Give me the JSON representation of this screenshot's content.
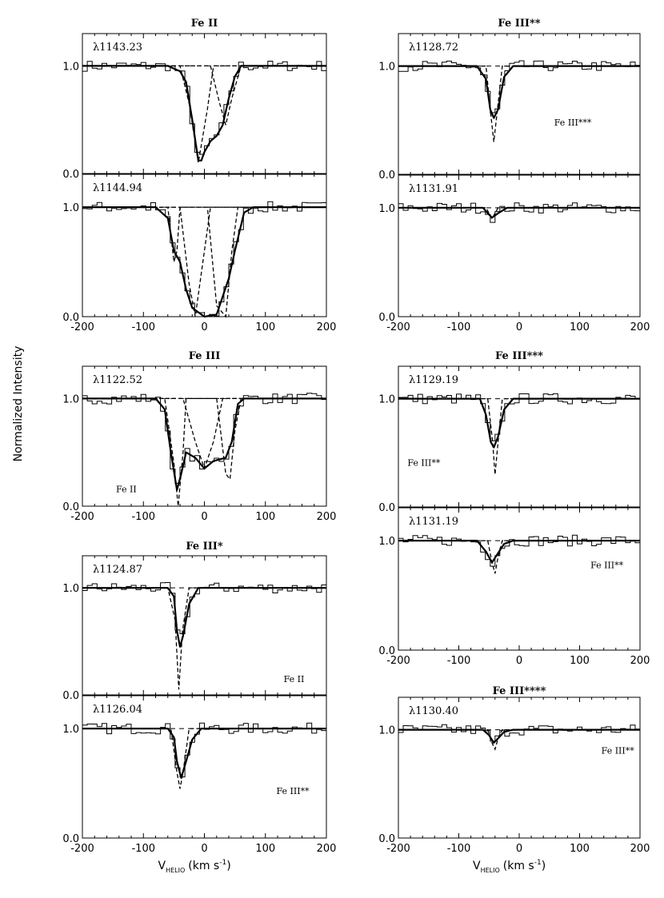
{
  "ylabel": "Normalized Intensity",
  "xlabel_parts": {
    "v": "V",
    "sub": "HELIO",
    "open": "(km s",
    "exp": "-1",
    "close": ")"
  },
  "chart_data": [
    {
      "type": "line",
      "title": "Fe II",
      "xlim": [
        -200,
        200
      ],
      "ylim": [
        0,
        1.3
      ],
      "x_ticks": [
        -200,
        -100,
        0,
        100,
        200
      ],
      "y_ticks": [
        "0.0",
        "1.0"
      ],
      "panels": [
        {
          "label": "λ1143.23",
          "fit_points": [
            [
              -200,
              1.0
            ],
            [
              -60,
              1.0
            ],
            [
              -40,
              0.95
            ],
            [
              -30,
              0.85
            ],
            [
              -20,
              0.5
            ],
            [
              -10,
              0.12
            ],
            [
              -5,
              0.12
            ],
            [
              0,
              0.2
            ],
            [
              10,
              0.3
            ],
            [
              20,
              0.35
            ],
            [
              30,
              0.45
            ],
            [
              40,
              0.7
            ],
            [
              50,
              0.9
            ],
            [
              60,
              1.0
            ],
            [
              200,
              1.0
            ]
          ],
          "component_points": [
            [
              [
                -200,
                1.0
              ],
              [
                -40,
                1.0
              ],
              [
                -25,
                0.65
              ],
              [
                -10,
                0.1
              ],
              [
                5,
                0.6
              ],
              [
                15,
                1.0
              ],
              [
                200,
                1.0
              ]
            ],
            [
              [
                -200,
                1.0
              ],
              [
                10,
                1.0
              ],
              [
                25,
                0.65
              ],
              [
                35,
                0.45
              ],
              [
                45,
                0.7
              ],
              [
                60,
                1.0
              ],
              [
                200,
                1.0
              ]
            ]
          ],
          "annotations": []
        },
        {
          "label": "λ1144.94",
          "fit_points": [
            [
              -200,
              1.0
            ],
            [
              -80,
              1.0
            ],
            [
              -60,
              0.9
            ],
            [
              -50,
              0.6
            ],
            [
              -40,
              0.5
            ],
            [
              -30,
              0.25
            ],
            [
              -20,
              0.08
            ],
            [
              0,
              0.0
            ],
            [
              20,
              0.02
            ],
            [
              40,
              0.35
            ],
            [
              50,
              0.6
            ],
            [
              65,
              0.95
            ],
            [
              80,
              1.0
            ],
            [
              200,
              1.0
            ]
          ],
          "component_points": [
            [
              [
                -200,
                1.0
              ],
              [
                -60,
                1.0
              ],
              [
                -50,
                0.5
              ],
              [
                -45,
                0.6
              ],
              [
                -40,
                1.0
              ],
              [
                200,
                1.0
              ]
            ],
            [
              [
                -200,
                1.0
              ],
              [
                -40,
                1.0
              ],
              [
                -25,
                0.3
              ],
              [
                -15,
                0.0
              ],
              [
                0,
                0.6
              ],
              [
                10,
                1.0
              ],
              [
                200,
                1.0
              ]
            ],
            [
              [
                -200,
                1.0
              ],
              [
                5,
                1.0
              ],
              [
                20,
                0.1
              ],
              [
                35,
                0.0
              ],
              [
                45,
                0.6
              ],
              [
                55,
                1.0
              ],
              [
                200,
                1.0
              ]
            ]
          ],
          "annotations": []
        }
      ]
    },
    {
      "type": "line",
      "title": "Fe III",
      "xlim": [
        -200,
        200
      ],
      "ylim": [
        0,
        1.3
      ],
      "x_ticks": [
        -200,
        -100,
        0,
        100,
        200
      ],
      "y_ticks": [
        "0.0",
        "1.0"
      ],
      "panels": [
        {
          "label": "λ1122.52",
          "fit_points": [
            [
              -200,
              1.0
            ],
            [
              -80,
              1.0
            ],
            [
              -65,
              0.9
            ],
            [
              -55,
              0.5
            ],
            [
              -45,
              0.15
            ],
            [
              -38,
              0.3
            ],
            [
              -30,
              0.5
            ],
            [
              -15,
              0.45
            ],
            [
              0,
              0.35
            ],
            [
              15,
              0.42
            ],
            [
              35,
              0.45
            ],
            [
              45,
              0.6
            ],
            [
              55,
              0.95
            ],
            [
              65,
              1.0
            ],
            [
              200,
              1.0
            ]
          ],
          "component_points": [
            [
              [
                -200,
                1.0
              ],
              [
                -65,
                1.0
              ],
              [
                -50,
                0.4
              ],
              [
                -43,
                0.0
              ],
              [
                -35,
                0.5
              ],
              [
                -30,
                1.0
              ],
              [
                200,
                1.0
              ]
            ],
            [
              [
                -200,
                1.0
              ],
              [
                -35,
                1.0
              ],
              [
                -15,
                0.6
              ],
              [
                0,
                0.35
              ],
              [
                15,
                0.6
              ],
              [
                30,
                1.0
              ],
              [
                200,
                1.0
              ]
            ],
            [
              [
                -200,
                1.0
              ],
              [
                20,
                1.0
              ],
              [
                35,
                0.3
              ],
              [
                42,
                0.25
              ],
              [
                50,
                0.7
              ],
              [
                60,
                1.0
              ],
              [
                200,
                1.0
              ]
            ]
          ],
          "annotations": [
            {
              "text": "Fe II",
              "x": -145,
              "y": 0.13
            }
          ]
        }
      ]
    },
    {
      "type": "line",
      "title": "Fe III*",
      "xlim": [
        -200,
        200
      ],
      "ylim": [
        0,
        1.3
      ],
      "x_ticks": [
        -200,
        -100,
        0,
        100,
        200
      ],
      "y_ticks": [
        "0.0",
        "1.0"
      ],
      "panels": [
        {
          "label": "λ1124.87",
          "fit_points": [
            [
              -200,
              1.0
            ],
            [
              -60,
              1.0
            ],
            [
              -50,
              0.92
            ],
            [
              -45,
              0.6
            ],
            [
              -40,
              0.45
            ],
            [
              -35,
              0.55
            ],
            [
              -25,
              0.85
            ],
            [
              -10,
              1.0
            ],
            [
              200,
              1.0
            ]
          ],
          "component_points": [
            [
              [
                -200,
                1.0
              ],
              [
                -60,
                1.0
              ],
              [
                -48,
                0.7
              ],
              [
                -42,
                0.05
              ],
              [
                -36,
                0.6
              ],
              [
                -25,
                1.0
              ],
              [
                200,
                1.0
              ]
            ]
          ],
          "annotations": [
            {
              "text": "Fe II",
              "x": 130,
              "y": 0.12
            }
          ]
        },
        {
          "label": "λ1126.04",
          "fit_points": [
            [
              -200,
              1.0
            ],
            [
              -60,
              1.0
            ],
            [
              -50,
              0.92
            ],
            [
              -45,
              0.7
            ],
            [
              -38,
              0.55
            ],
            [
              -30,
              0.7
            ],
            [
              -20,
              0.9
            ],
            [
              -5,
              1.0
            ],
            [
              200,
              1.0
            ]
          ],
          "component_points": [
            [
              [
                -200,
                1.0
              ],
              [
                -55,
                1.0
              ],
              [
                -45,
                0.6
              ],
              [
                -40,
                0.45
              ],
              [
                -35,
                0.6
              ],
              [
                -25,
                1.0
              ],
              [
                200,
                1.0
              ]
            ]
          ],
          "annotations": [
            {
              "text": "Fe III**",
              "x": 118,
              "y": 0.4
            }
          ]
        }
      ]
    },
    {
      "type": "line",
      "title": "Fe III**",
      "xlim": [
        -200,
        200
      ],
      "ylim": [
        0,
        1.3
      ],
      "x_ticks": [
        -200,
        -100,
        0,
        100,
        200
      ],
      "y_ticks": [
        "0.0",
        "1.0"
      ],
      "panels": [
        {
          "label": "λ1128.72",
          "fit_points": [
            [
              -200,
              1.0
            ],
            [
              -70,
              1.0
            ],
            [
              -55,
              0.88
            ],
            [
              -48,
              0.6
            ],
            [
              -42,
              0.52
            ],
            [
              -35,
              0.6
            ],
            [
              -25,
              0.9
            ],
            [
              -10,
              1.0
            ],
            [
              200,
              1.0
            ]
          ],
          "component_points": [
            [
              [
                -200,
                1.0
              ],
              [
                -55,
                1.0
              ],
              [
                -48,
                0.6
              ],
              [
                -42,
                0.3
              ],
              [
                -36,
                0.6
              ],
              [
                -28,
                1.0
              ],
              [
                200,
                1.0
              ]
            ]
          ],
          "annotations": [
            {
              "text": "Fe III***",
              "x": 58,
              "y": 0.45
            }
          ]
        },
        {
          "label": "λ1131.91",
          "fit_points": [
            [
              -200,
              1.0
            ],
            [
              -60,
              1.0
            ],
            [
              -52,
              0.95
            ],
            [
              -45,
              0.91
            ],
            [
              -35,
              0.95
            ],
            [
              -20,
              1.0
            ],
            [
              200,
              1.0
            ]
          ],
          "component_points": [
            [
              [
                -200,
                1.0
              ],
              [
                -55,
                1.0
              ],
              [
                -45,
                0.9
              ],
              [
                -35,
                1.0
              ],
              [
                200,
                1.0
              ]
            ]
          ],
          "annotations": []
        }
      ]
    },
    {
      "type": "line",
      "title": "Fe III***",
      "xlim": [
        -200,
        200
      ],
      "ylim": [
        0,
        1.3
      ],
      "x_ticks": [
        -200,
        -100,
        0,
        100,
        200
      ],
      "y_ticks": [
        "0.0",
        "1.0"
      ],
      "panels": [
        {
          "label": "λ1129.19",
          "fit_points": [
            [
              -200,
              1.0
            ],
            [
              -65,
              1.0
            ],
            [
              -55,
              0.85
            ],
            [
              -47,
              0.6
            ],
            [
              -42,
              0.55
            ],
            [
              -35,
              0.65
            ],
            [
              -25,
              0.9
            ],
            [
              -10,
              1.0
            ],
            [
              200,
              1.0
            ]
          ],
          "component_points": [
            [
              [
                -200,
                1.0
              ],
              [
                -52,
                1.0
              ],
              [
                -44,
                0.6
              ],
              [
                -40,
                0.3
              ],
              [
                -35,
                0.6
              ],
              [
                -28,
                1.0
              ],
              [
                200,
                1.0
              ]
            ]
          ],
          "annotations": [
            {
              "text": "Fe III**",
              "x": -185,
              "y": 0.38
            }
          ]
        },
        {
          "label": "λ1131.19",
          "fit_points": [
            [
              -200,
              1.0
            ],
            [
              -70,
              1.0
            ],
            [
              -55,
              0.9
            ],
            [
              -45,
              0.8
            ],
            [
              -38,
              0.86
            ],
            [
              -25,
              0.97
            ],
            [
              -10,
              1.0
            ],
            [
              200,
              1.0
            ]
          ],
          "component_points": [
            [
              [
                -200,
                1.0
              ],
              [
                -52,
                1.0
              ],
              [
                -45,
                0.8
              ],
              [
                -40,
                0.7
              ],
              [
                -35,
                0.85
              ],
              [
                -28,
                1.0
              ],
              [
                200,
                1.0
              ]
            ]
          ],
          "annotations": [
            {
              "text": "Fe III**",
              "x": 118,
              "y": 0.75
            }
          ]
        }
      ]
    },
    {
      "type": "line",
      "title": "Fe III****",
      "xlim": [
        -200,
        200
      ],
      "ylim": [
        0,
        1.3
      ],
      "x_ticks": [
        -200,
        -100,
        0,
        100,
        200
      ],
      "y_ticks": [
        "0.0",
        "1.0"
      ],
      "panels": [
        {
          "label": "λ1130.40",
          "fit_points": [
            [
              -200,
              1.0
            ],
            [
              -60,
              1.0
            ],
            [
              -50,
              0.95
            ],
            [
              -42,
              0.88
            ],
            [
              -35,
              0.92
            ],
            [
              -25,
              0.98
            ],
            [
              -10,
              1.0
            ],
            [
              200,
              1.0
            ]
          ],
          "component_points": [
            [
              [
                -200,
                1.0
              ],
              [
                -52,
                1.0
              ],
              [
                -45,
                0.88
              ],
              [
                -40,
                0.82
              ],
              [
                -35,
                0.92
              ],
              [
                -28,
                1.0
              ],
              [
                200,
                1.0
              ]
            ]
          ],
          "annotations": [
            {
              "text": "Fe III**",
              "x": 136,
              "y": 0.78
            }
          ]
        }
      ]
    }
  ]
}
